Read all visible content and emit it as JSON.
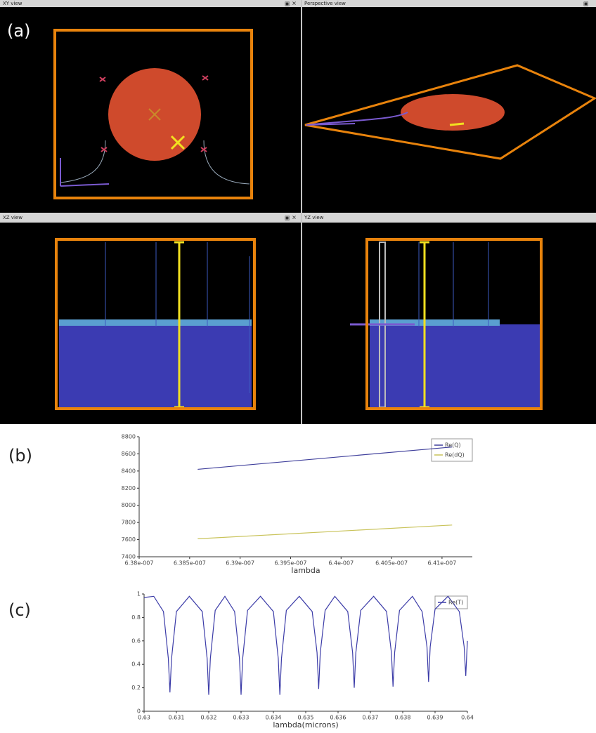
{
  "panels": [
    "(a)",
    "(b)",
    "(c)"
  ],
  "views": [
    {
      "title": "XY view"
    },
    {
      "title": "Perspective view"
    },
    {
      "title": "XZ view"
    },
    {
      "title": "YZ view"
    }
  ],
  "chart_data": [
    {
      "type": "line",
      "xlabel": "lambda",
      "x": [
        6.3858e-07,
        6.411e-07
      ],
      "series": [
        {
          "name": "Re(Q)",
          "color": "#40409c",
          "values": [
            8420,
            8680
          ]
        },
        {
          "name": "Re(dQ)",
          "color": "#c9c35a",
          "values": [
            7610,
            7770
          ]
        }
      ],
      "xlim": [
        6.38e-07,
        6.413e-07
      ],
      "xticks": [
        {
          "value": 6.38e-07,
          "label": "6.38e-007"
        },
        {
          "value": 6.385e-07,
          "label": "6.385e-007"
        },
        {
          "value": 6.39e-07,
          "label": "6.39e-007"
        },
        {
          "value": 6.395e-07,
          "label": "6.395e-007"
        },
        {
          "value": 6.4e-07,
          "label": "6.4e-007"
        },
        {
          "value": 6.405e-07,
          "label": "6.405e-007"
        },
        {
          "value": 6.41e-07,
          "label": "6.41e-007"
        }
      ],
      "ylim": [
        7400,
        8800
      ],
      "yticks": [
        7400,
        7600,
        7800,
        8000,
        8200,
        8400,
        8600,
        8800
      ],
      "legend": "upper right",
      "grid": false
    },
    {
      "type": "line",
      "xlabel": "lambda(microns)",
      "x": [
        0.63,
        0.6303,
        0.6306,
        0.63075,
        0.6308,
        0.63085,
        0.631,
        0.6314,
        0.6318,
        0.63195,
        0.632,
        0.63205,
        0.6322,
        0.6325,
        0.6328,
        0.63295,
        0.633,
        0.63305,
        0.6332,
        0.6336,
        0.634,
        0.63415,
        0.6342,
        0.63425,
        0.6344,
        0.6348,
        0.6352,
        0.63535,
        0.6354,
        0.63545,
        0.6356,
        0.6359,
        0.6363,
        0.63645,
        0.6365,
        0.63655,
        0.6367,
        0.6371,
        0.6375,
        0.63765,
        0.6377,
        0.63775,
        0.6379,
        0.6383,
        0.6386,
        0.63875,
        0.6388,
        0.63885,
        0.639,
        0.6394,
        0.63975,
        0.6399,
        0.63995,
        0.64
      ],
      "series": [
        {
          "name": "Re(T)",
          "color": "#3c3ca8",
          "values": [
            0.97,
            0.98,
            0.85,
            0.45,
            0.16,
            0.45,
            0.85,
            0.98,
            0.85,
            0.45,
            0.14,
            0.45,
            0.86,
            0.98,
            0.85,
            0.45,
            0.14,
            0.45,
            0.86,
            0.98,
            0.85,
            0.45,
            0.14,
            0.45,
            0.86,
            0.98,
            0.85,
            0.5,
            0.19,
            0.5,
            0.86,
            0.98,
            0.85,
            0.5,
            0.2,
            0.5,
            0.86,
            0.98,
            0.85,
            0.5,
            0.21,
            0.5,
            0.86,
            0.98,
            0.85,
            0.55,
            0.25,
            0.55,
            0.87,
            0.98,
            0.85,
            0.55,
            0.3,
            0.6
          ]
        }
      ],
      "xlim": [
        0.63,
        0.64
      ],
      "xticks": [
        0.63,
        0.631,
        0.632,
        0.633,
        0.634,
        0.635,
        0.636,
        0.637,
        0.638,
        0.639,
        0.64
      ],
      "ylim": [
        0,
        1
      ],
      "yticks": [
        0,
        0.2,
        0.4,
        0.6,
        0.8,
        1
      ],
      "legend": "upper right",
      "grid": false
    }
  ]
}
